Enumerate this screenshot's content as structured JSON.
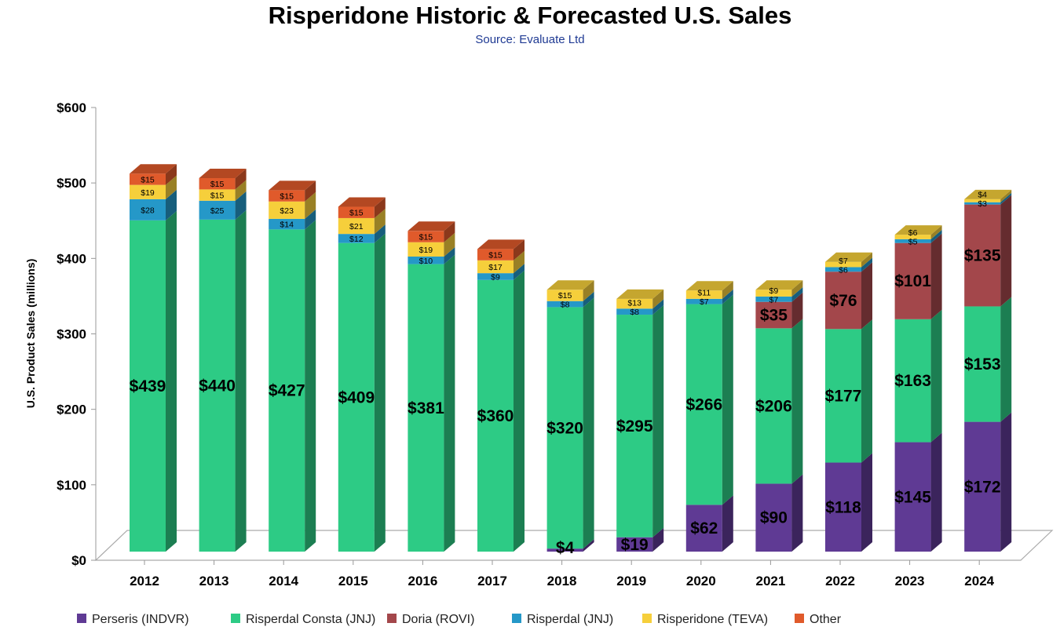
{
  "chart_data": {
    "type": "bar",
    "stacked": true,
    "style": "3d",
    "title": "Risperidone Historic & Forecasted U.S. Sales",
    "subtitle": "Source: Evaluate Ltd",
    "xlabel": "",
    "ylabel": "U.S. Product Sales (millions)",
    "ylim": [
      0,
      600
    ],
    "yticks": [
      "$0",
      "$100",
      "$200",
      "$300",
      "$400",
      "$500",
      "$600"
    ],
    "grid": false,
    "legend_position": "bottom",
    "categories": [
      "2012",
      "2013",
      "2014",
      "2015",
      "2016",
      "2017",
      "2018",
      "2019",
      "2020",
      "2021",
      "2022",
      "2023",
      "2024"
    ],
    "series": [
      {
        "name": "Perseris (INDVR)",
        "color": "#5f3a94",
        "values": [
          0,
          0,
          0,
          0,
          0,
          0,
          4,
          19,
          62,
          90,
          118,
          145,
          172
        ]
      },
      {
        "name": "Risperdal Consta (JNJ)",
        "color": "#2dcb85",
        "values": [
          439,
          440,
          427,
          409,
          381,
          360,
          320,
          295,
          266,
          206,
          177,
          163,
          153
        ]
      },
      {
        "name": "Doria (ROVI)",
        "color": "#a3474b",
        "values": [
          0,
          0,
          0,
          0,
          0,
          0,
          0,
          0,
          0,
          35,
          76,
          101,
          135
        ]
      },
      {
        "name": "Risperdal (JNJ)",
        "color": "#2598c8",
        "values": [
          28,
          25,
          14,
          12,
          10,
          9,
          8,
          8,
          7,
          7,
          6,
          5,
          3
        ]
      },
      {
        "name": "Risperidone (TEVA)",
        "color": "#f6cf3b",
        "values": [
          19,
          15,
          23,
          21,
          19,
          17,
          15,
          13,
          11,
          9,
          7,
          6,
          4
        ]
      },
      {
        "name": "Other",
        "color": "#e05a2b",
        "values": [
          15,
          15,
          15,
          15,
          15,
          15,
          0,
          0,
          0,
          0,
          0,
          0,
          0
        ]
      }
    ]
  }
}
